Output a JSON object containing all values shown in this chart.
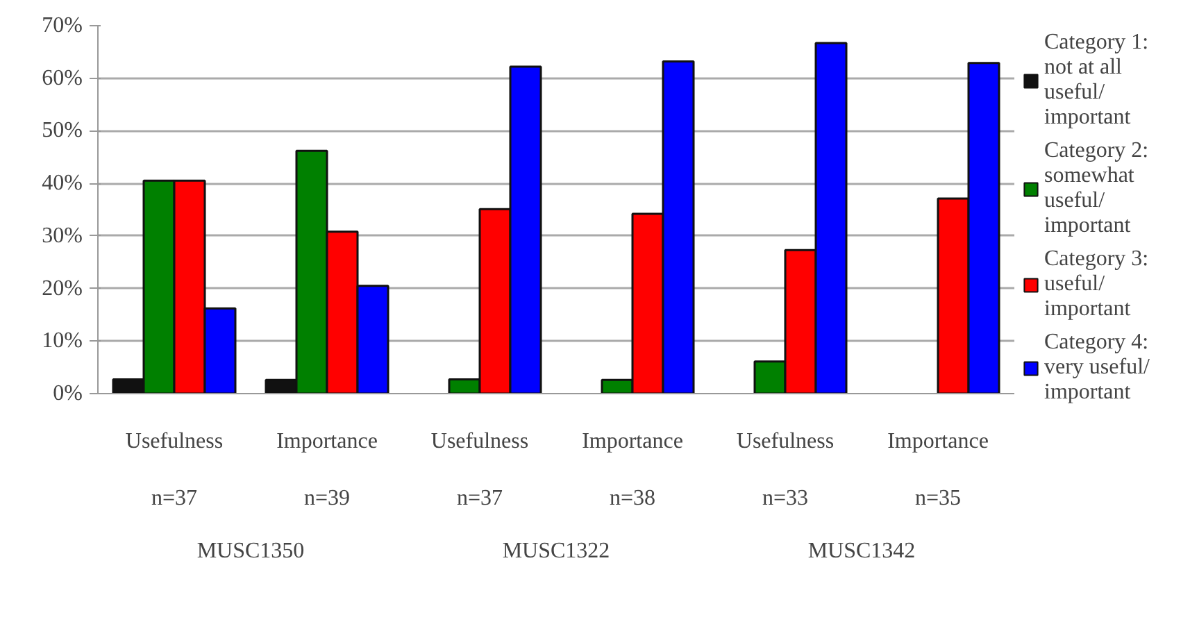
{
  "chart_data": {
    "type": "bar",
    "categories": [
      "Usefulness\n\nn=37",
      "Importance\n\nn=39",
      "Usefulness\n\nn=37",
      "Importance\n\nn=38",
      "Usefulness\n\nn=33",
      "Importance\n\nn=35"
    ],
    "annotations": [
      "MUSC1350",
      "MUSC1322",
      "MUSC1342"
    ],
    "series": [
      {
        "name": "Category 1: not at all useful/important",
        "color": "#111111",
        "values": [
          2.7,
          2.6,
          0,
          0,
          0,
          0
        ]
      },
      {
        "name": "Category 2: somewhat useful/important",
        "color": "#008000",
        "values": [
          40.5,
          46.2,
          2.7,
          2.6,
          6.1,
          0
        ]
      },
      {
        "name": "Category 3: useful/important",
        "color": "#ff0000",
        "values": [
          40.5,
          30.8,
          35.1,
          34.2,
          27.3,
          37.1
        ]
      },
      {
        "name": "Category 4: very useful/important",
        "color": "#0000ff",
        "values": [
          16.2,
          20.5,
          62.2,
          63.2,
          66.7,
          62.9
        ]
      }
    ],
    "ylim": [
      0,
      70
    ],
    "yticks": [
      {
        "value": 0,
        "label": "0%"
      },
      {
        "value": 10,
        "label": "10%"
      },
      {
        "value": 20,
        "label": "20%"
      },
      {
        "value": 30,
        "label": "30%"
      },
      {
        "value": 40,
        "label": "40%"
      },
      {
        "value": 50,
        "label": "50%"
      },
      {
        "value": 60,
        "label": "60%"
      },
      {
        "value": 70,
        "label": "70%"
      }
    ],
    "grid": "y",
    "legend": "right"
  }
}
